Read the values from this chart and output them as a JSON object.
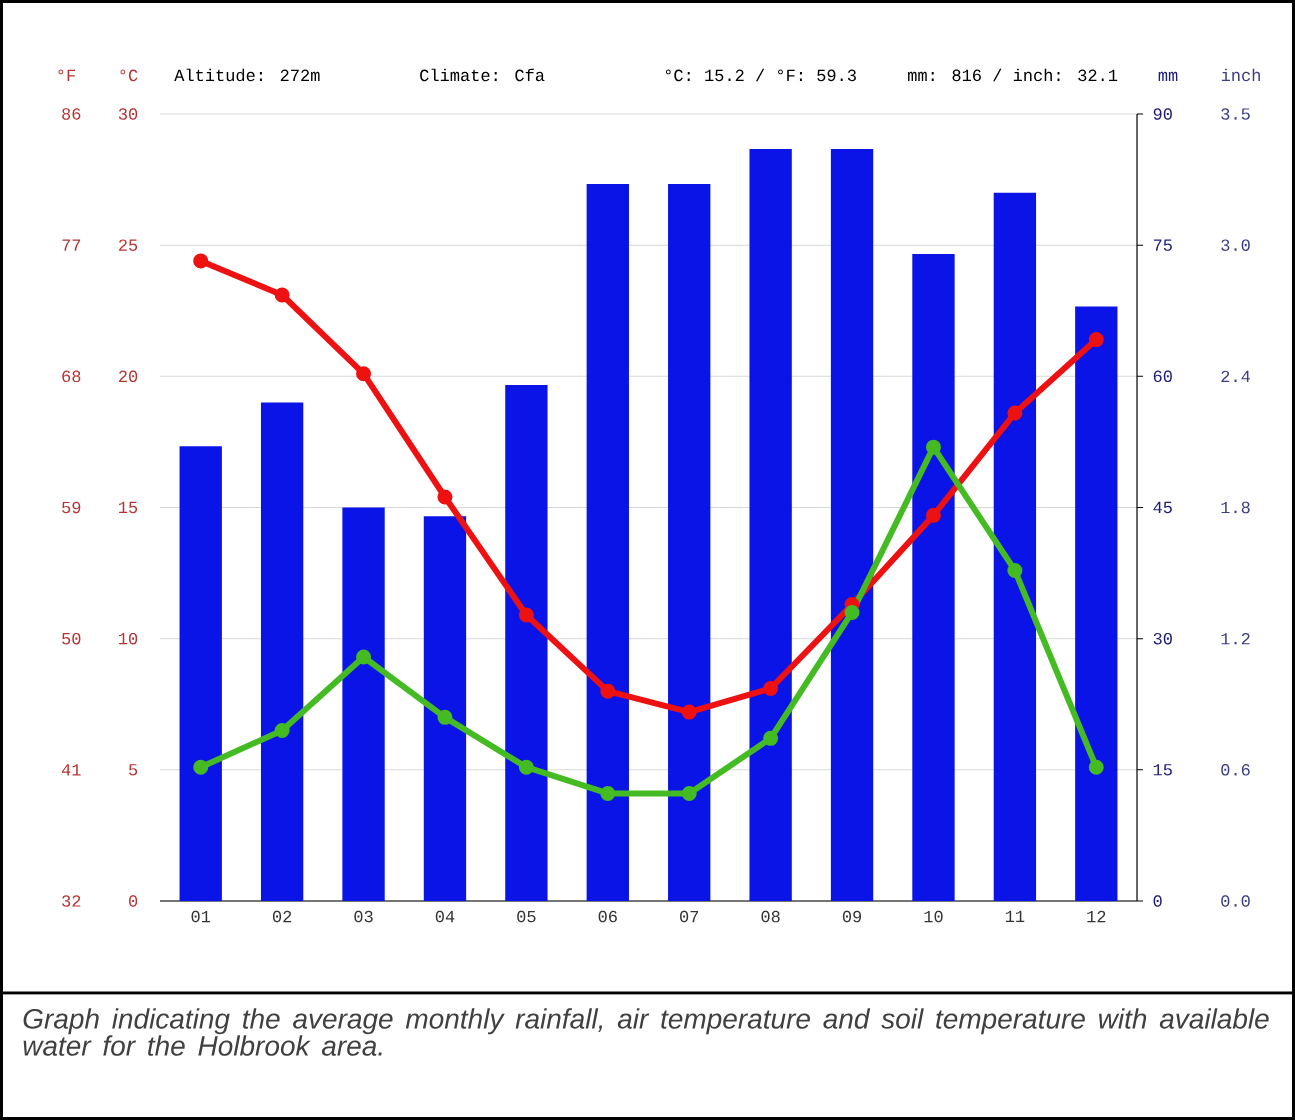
{
  "chart_data": {
    "type": "bar",
    "categories": [
      "01",
      "02",
      "03",
      "04",
      "05",
      "06",
      "07",
      "08",
      "09",
      "10",
      "11",
      "12"
    ],
    "series": [
      {
        "axis": "y2",
        "color": "#0a14e6",
        "values": [
          52,
          57,
          45,
          44,
          59,
          82,
          82,
          86,
          86,
          74,
          81,
          68
        ]
      },
      {
        "type": "line",
        "color": "#ee1111",
        "values": [
          24.4,
          23.1,
          20.1,
          15.4,
          10.9,
          8.0,
          7.2,
          8.1,
          11.3,
          14.7,
          18.6,
          21.4
        ]
      },
      {
        "type": "line",
        "color": "#44bb22",
        "values": [
          5.1,
          6.5,
          9.3,
          7.0,
          5.1,
          4.1,
          4.1,
          6.2,
          11.0,
          17.3,
          12.6,
          5.1
        ]
      }
    ],
    "ylabel": "°C",
    "ylim": [
      0,
      30
    ],
    "yticks": [
      0,
      5,
      10,
      15,
      20,
      25,
      30
    ],
    "y2label": "mm",
    "y2lim": [
      0,
      90
    ],
    "y2ticks": [
      0,
      15,
      30,
      45,
      60,
      75,
      90
    ],
    "y3label": "°F",
    "y3lim": [
      32,
      86
    ],
    "y3ticks": [
      32,
      41,
      50,
      59,
      68,
      77,
      86
    ],
    "grid": "y",
    "marker": "circle",
    "line_style": "solid",
    "annotations": [
      "Altitude: 272m",
      "Climate: Cfa",
      "°C: 15.2 / °F: 59.3",
      "mm: 816 / inch: 32.1",
      "Graph indicating the average monthly rainfall, air temperature and soil temperature with available water for the Holbrook area.",
      "inch",
      "0.0",
      "0.6",
      "1.2",
      "1.8",
      "2.4",
      "3.0",
      "3.5"
    ]
  }
}
